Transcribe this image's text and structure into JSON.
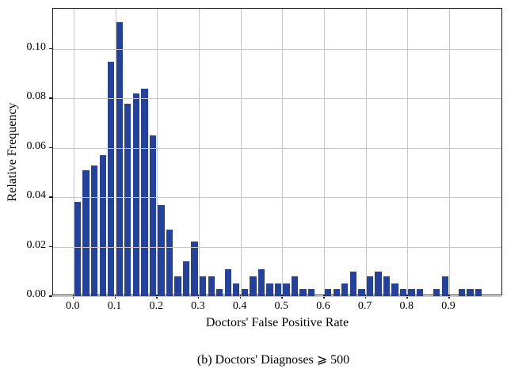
{
  "figure": {
    "ylabel": "Relative Frequency",
    "xlabel": "Doctors' False Positive Rate",
    "caption": "(b) Doctors' Diagnoses ⩾ 500"
  },
  "chart_data": {
    "type": "bar",
    "subtype": "histogram",
    "title": "",
    "xlabel": "Doctors' False Positive Rate",
    "ylabel": "Relative Frequency",
    "caption": "(b) Doctors' Diagnoses ⩾ 500",
    "bin_width": 0.02,
    "bar_relative_width": 0.8,
    "bin_centers": [
      0.01,
      0.03,
      0.05,
      0.07,
      0.09,
      0.11,
      0.13,
      0.15,
      0.17,
      0.19,
      0.21,
      0.23,
      0.25,
      0.27,
      0.29,
      0.31,
      0.33,
      0.35,
      0.37,
      0.39,
      0.41,
      0.43,
      0.45,
      0.47,
      0.49,
      0.51,
      0.53,
      0.55,
      0.57,
      0.59,
      0.61,
      0.63,
      0.65,
      0.67,
      0.69,
      0.71,
      0.73,
      0.75,
      0.77,
      0.79,
      0.81,
      0.83,
      0.85,
      0.87,
      0.89,
      0.91,
      0.93,
      0.95,
      0.97,
      0.99
    ],
    "values": [
      0.038,
      0.051,
      0.053,
      0.057,
      0.095,
      0.111,
      0.078,
      0.082,
      0.084,
      0.065,
      0.037,
      0.027,
      0.008,
      0.014,
      0.022,
      0.008,
      0.008,
      0.003,
      0.011,
      0.005,
      0.003,
      0.008,
      0.011,
      0.005,
      0.005,
      0.005,
      0.008,
      0.003,
      0.003,
      0,
      0.003,
      0.003,
      0.005,
      0.01,
      0.003,
      0.008,
      0.01,
      0.008,
      0.005,
      0.003,
      0.003,
      0.003,
      0,
      0.003,
      0.008,
      0,
      0.003,
      0.003,
      0.003,
      0
    ],
    "xticks": [
      {
        "v": 0.0,
        "label": "0.0"
      },
      {
        "v": 0.1,
        "label": "0.1"
      },
      {
        "v": 0.2,
        "label": "0.2"
      },
      {
        "v": 0.3,
        "label": "0.3"
      },
      {
        "v": 0.4,
        "label": "0.4"
      },
      {
        "v": 0.5,
        "label": "0.5"
      },
      {
        "v": 0.6,
        "label": "0.6"
      },
      {
        "v": 0.7,
        "label": "0.7"
      },
      {
        "v": 0.8,
        "label": "0.8"
      },
      {
        "v": 0.9,
        "label": "0.9"
      }
    ],
    "yticks": [
      {
        "v": 0.0,
        "label": "0.00"
      },
      {
        "v": 0.02,
        "label": "0.02"
      },
      {
        "v": 0.04,
        "label": "0.04"
      },
      {
        "v": 0.06,
        "label": "0.06"
      },
      {
        "v": 0.08,
        "label": "0.08"
      },
      {
        "v": 0.1,
        "label": "0.10"
      }
    ],
    "xlim": [
      -0.049,
      1.029
    ],
    "ylim": [
      0,
      0.1163
    ],
    "grid": true,
    "legend": false,
    "bar_color": "#24429c",
    "grid_color": "#c6c6c6",
    "spine_color": "#1a1a1a"
  }
}
